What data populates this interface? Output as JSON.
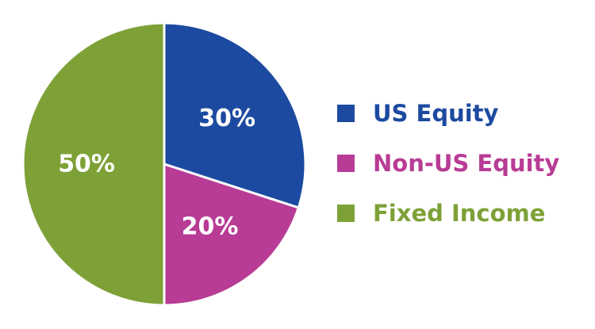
{
  "chart_data": {
    "type": "pie",
    "title": "",
    "legend_position": "right",
    "slices": [
      {
        "label": "US Equity",
        "value": 30,
        "display": "30%",
        "color": "#1c4aa0"
      },
      {
        "label": "Non-US Equity",
        "value": 20,
        "display": "20%",
        "color": "#b83c95"
      },
      {
        "label": "Fixed Income",
        "value": 50,
        "display": "50%",
        "color": "#7ea137"
      }
    ]
  }
}
